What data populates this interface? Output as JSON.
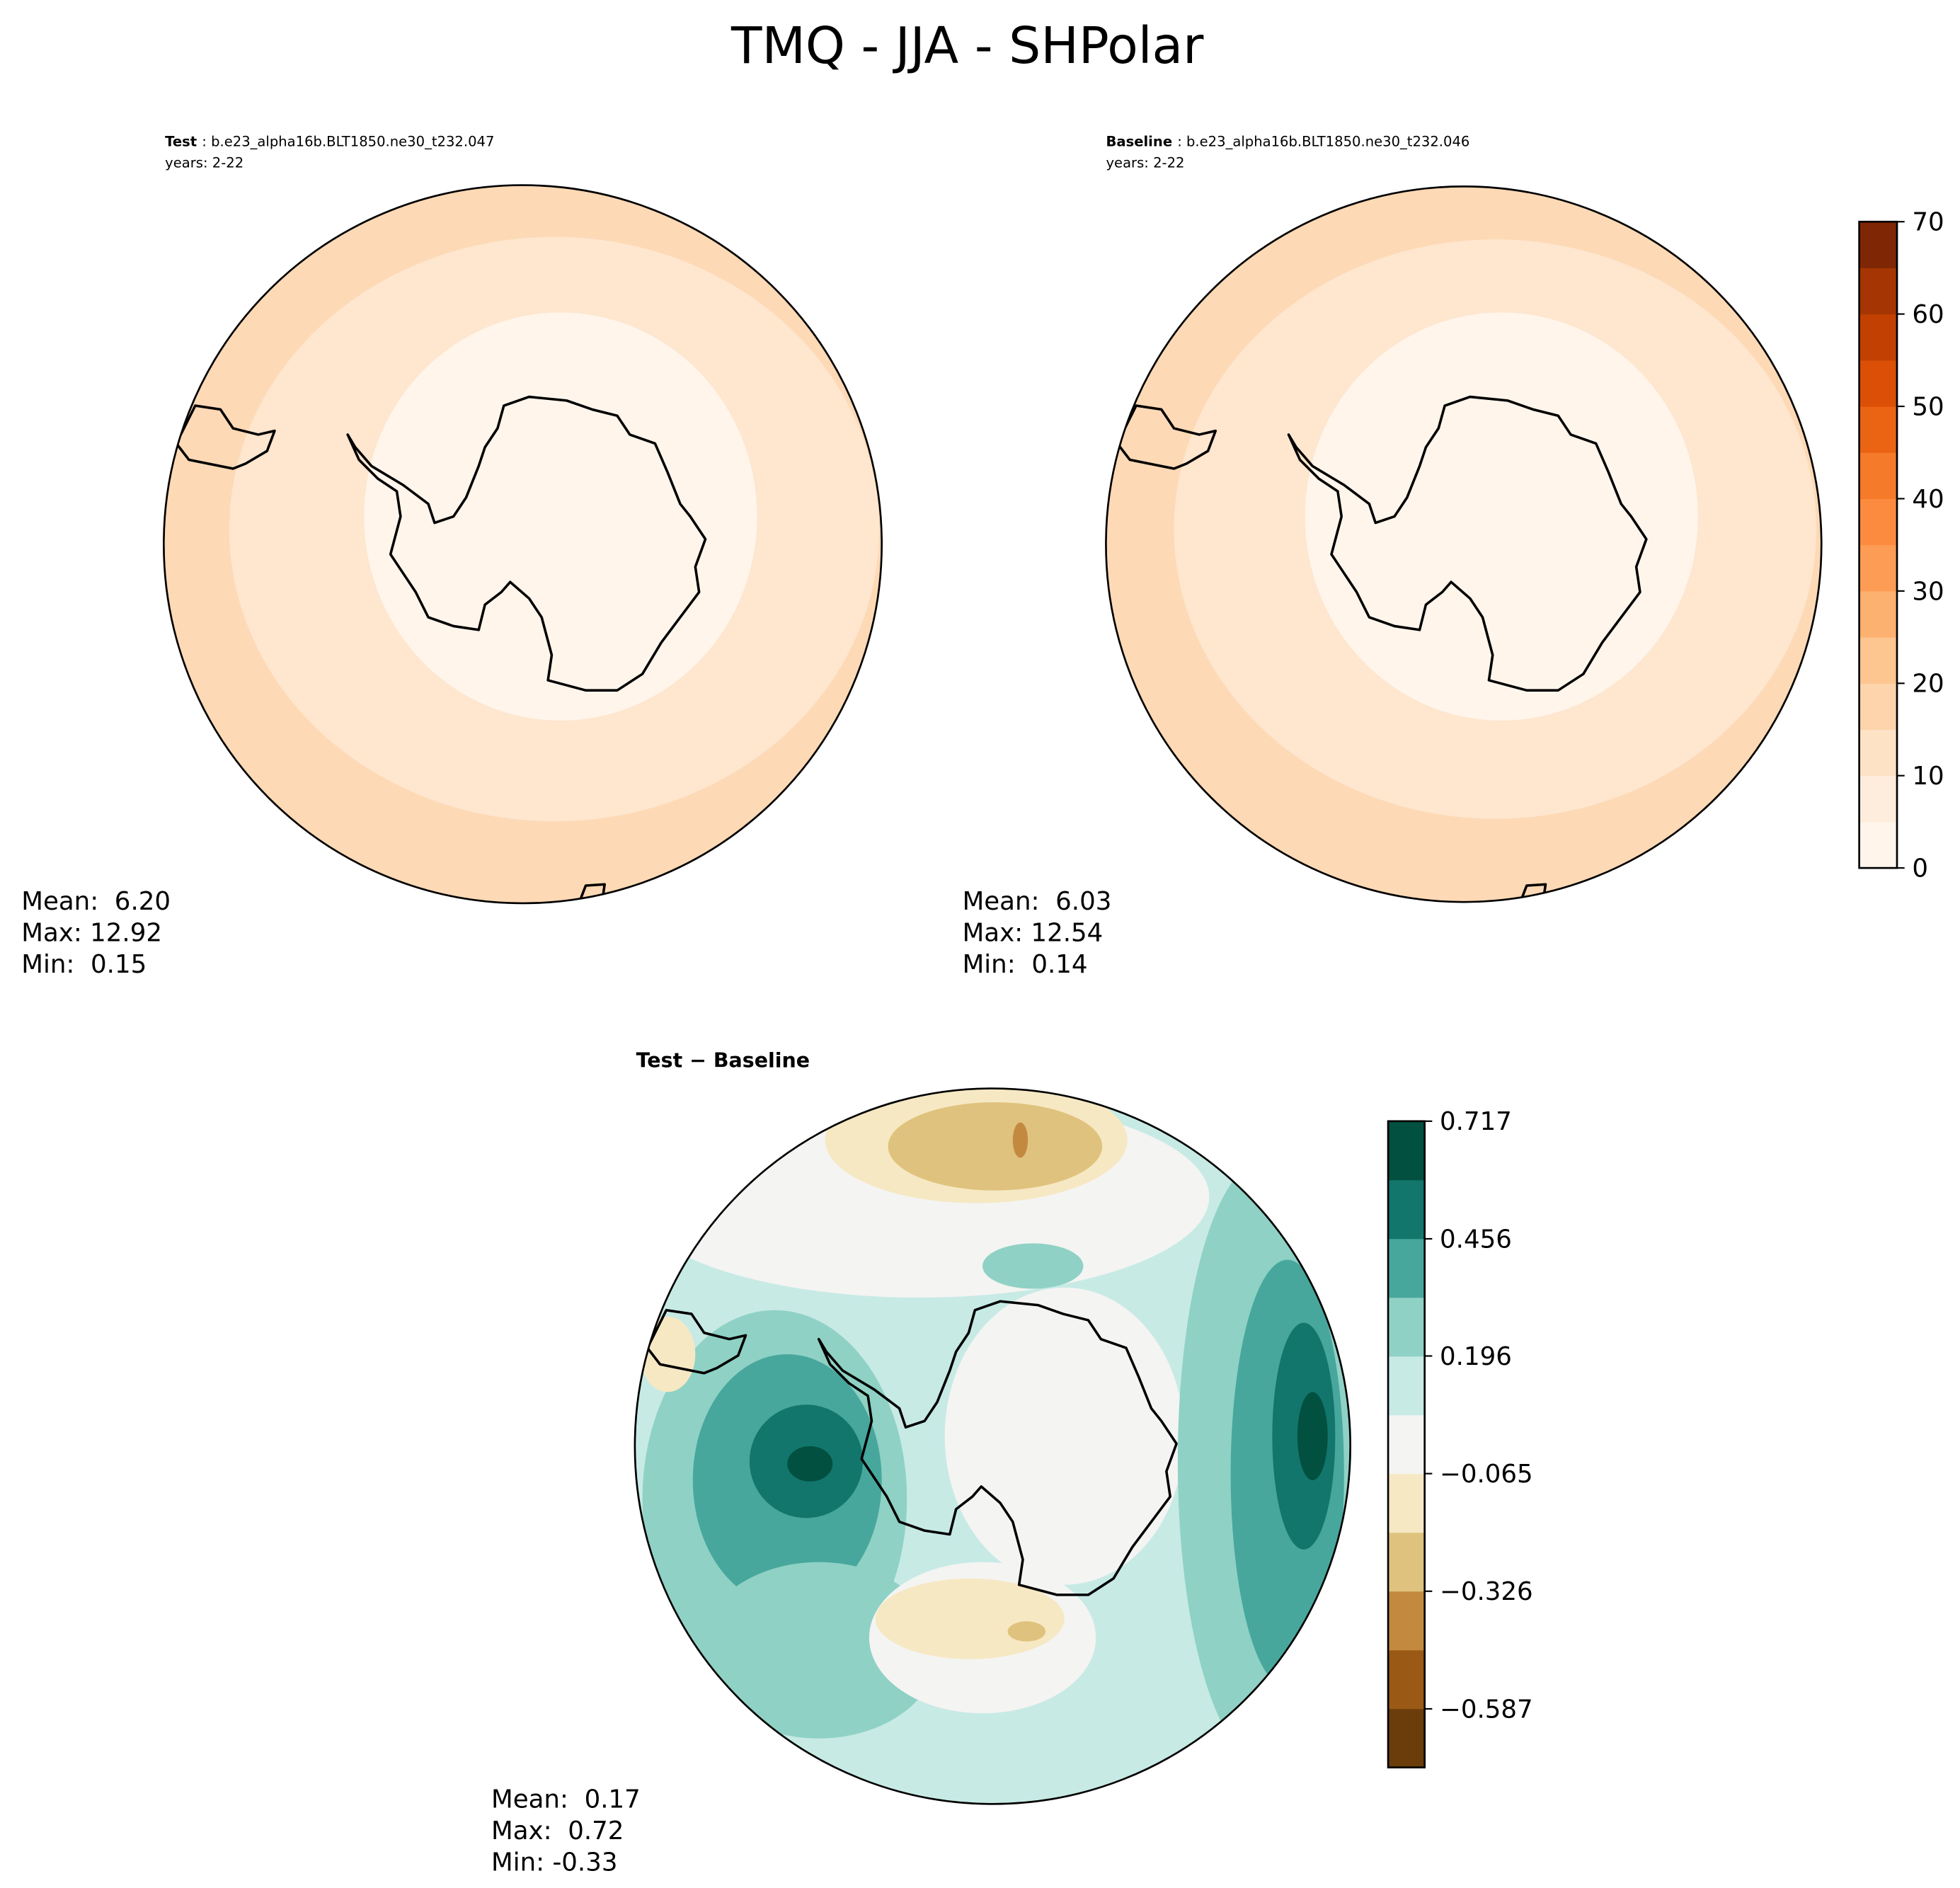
{
  "title": "TMQ - JJA - SHPolar",
  "panels": [
    {
      "name": "Test",
      "case": ": b.e23_alpha16b.BLT1850.ne30_t232.047",
      "years": "years: 2-22",
      "stats": [
        "Mean:  6.20",
        "Max: 12.92",
        "Min:  0.15"
      ]
    },
    {
      "name": "Baseline",
      "case": ": b.e23_alpha16b.BLT1850.ne30_t232.046",
      "years": "years: 2-22",
      "stats": [
        "Mean:  6.03",
        "Max: 12.54",
        "Min:  0.14"
      ]
    },
    {
      "name": "Test − Baseline",
      "stats": [
        "Mean:  0.17",
        "Max:  0.72",
        "Min: -0.33"
      ]
    }
  ],
  "colorbars": [
    {
      "lim": [
        0,
        70
      ],
      "ticks": [
        0,
        10,
        20,
        30,
        40,
        50,
        60,
        70
      ],
      "colors": [
        "#fff5eb",
        "#feeddc",
        "#fee2c6",
        "#fdd4ab",
        "#fdc590",
        "#fdb170",
        "#fd9c55",
        "#fc8b3f",
        "#f57a29",
        "#ea6414",
        "#db4f07",
        "#c24102",
        "#a53603",
        "#7f2704"
      ]
    },
    {
      "lim": [
        -0.717,
        0.717
      ],
      "ticks": [
        0.717,
        0.456,
        0.196,
        {
          "value": -0.065,
          "label": "−0.065"
        },
        {
          "value": -0.326,
          "label": "−0.326"
        },
        {
          "value": -0.587,
          "label": "−0.587"
        }
      ],
      "colors": [
        "#6b3d0a",
        "#9a5a16",
        "#c38a3f",
        "#dfc27d",
        "#f6e8c3",
        "#f4f4f2",
        "#c7eae5",
        "#8fd1c5",
        "#48a79c",
        "#12766d",
        "#02503f"
      ]
    }
  ]
}
